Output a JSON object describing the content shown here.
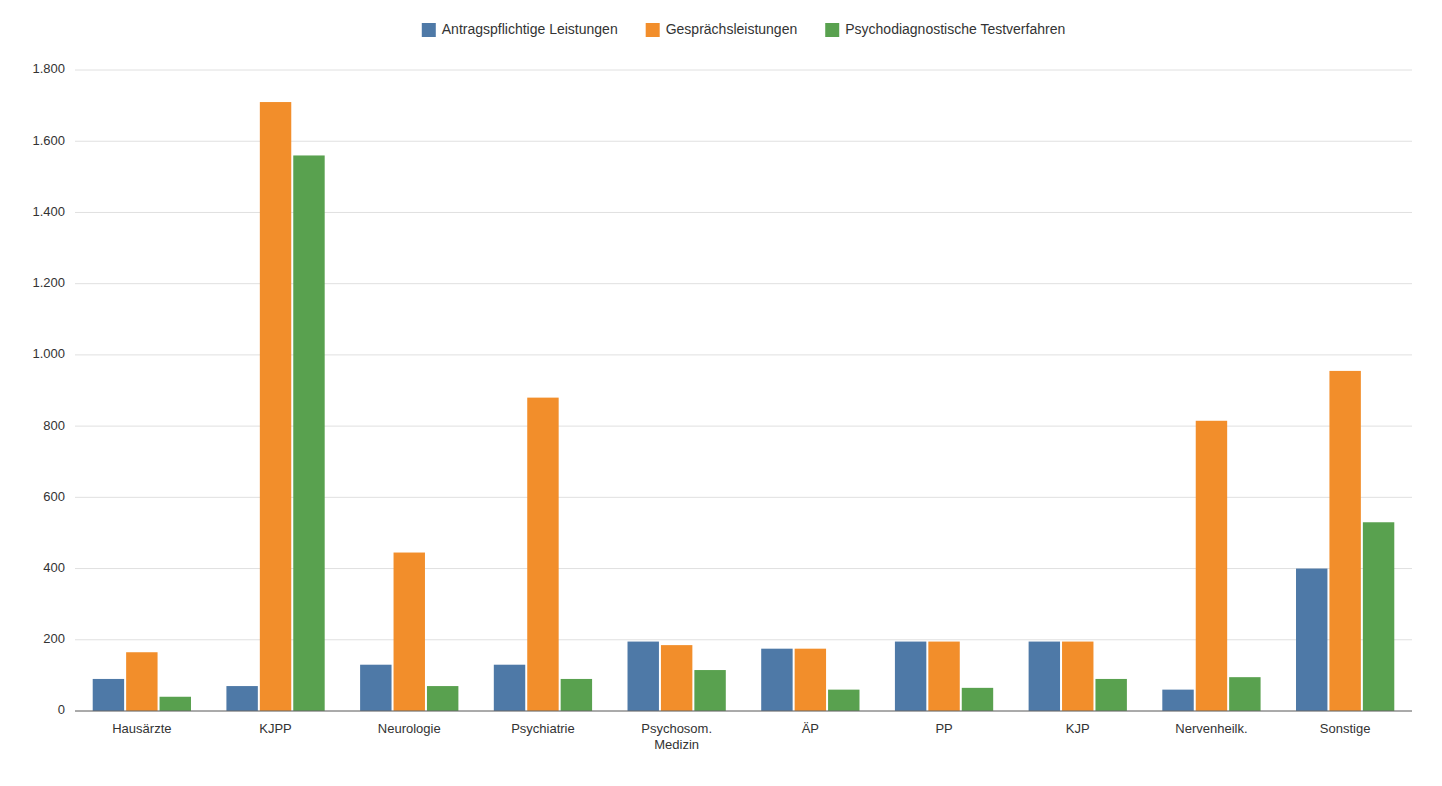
{
  "chart_data": {
    "type": "bar",
    "categories": [
      "Hausärzte",
      "KJPP",
      "Neurologie",
      "Psychiatrie",
      "Psychosom.\nMedizin",
      "ÄP",
      "PP",
      "KJP",
      "Nervenheilk.",
      "Sonstige"
    ],
    "series": [
      {
        "name": "Antragspflichtige Leistungen",
        "values": [
          90,
          70,
          130,
          130,
          195,
          175,
          195,
          195,
          60,
          400
        ]
      },
      {
        "name": "Gesprächsleistungen",
        "values": [
          165,
          1710,
          445,
          880,
          185,
          175,
          195,
          195,
          815,
          955
        ]
      },
      {
        "name": "Psychodiagnostische Testverfahren",
        "values": [
          40,
          1560,
          70,
          90,
          115,
          60,
          65,
          90,
          95,
          530
        ]
      }
    ],
    "ylim": [
      0,
      1800
    ],
    "yticks": [
      0,
      200,
      400,
      600,
      800,
      {
        "value": 1000,
        "label": "1.000"
      },
      {
        "value": 1200,
        "label": "1.200"
      },
      {
        "value": 1400,
        "label": "1.400"
      },
      {
        "value": 1600,
        "label": "1.600"
      },
      {
        "value": 1800,
        "label": "1.800"
      }
    ],
    "grid": true,
    "legend": "upper center"
  }
}
